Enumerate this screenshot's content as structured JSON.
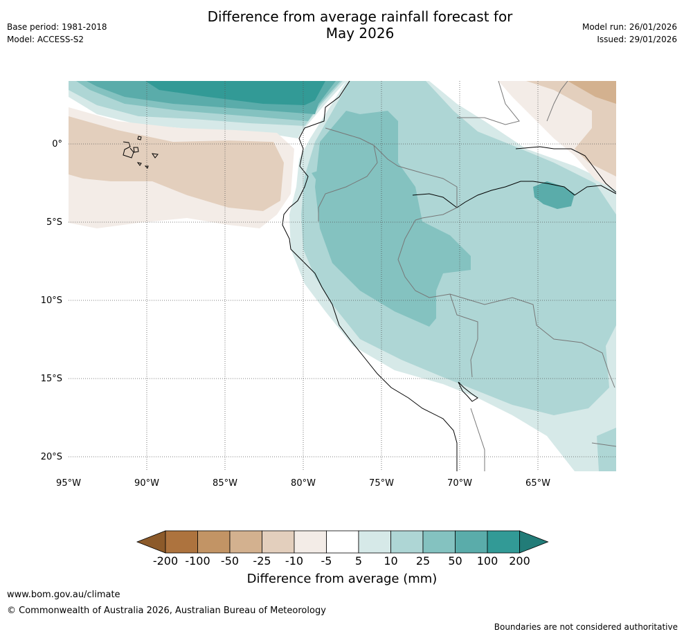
{
  "title_line1": "Difference from average rainfall forecast for",
  "title_line2": "May 2026",
  "base_period": "Base period: 1981-2018",
  "model": "Model: ACCESS-S2",
  "model_run": "Model run: 26/01/2026",
  "issued": "Issued: 29/01/2026",
  "lat_labels": [
    "0°",
    "5°S",
    "10°S",
    "15°S",
    "20°S"
  ],
  "lon_labels": [
    "95°W",
    "90°W",
    "85°W",
    "80°W",
    "75°W",
    "70°W",
    "65°W"
  ],
  "colorbar": {
    "title": "Difference from average (mm)",
    "ticks": [
      "-200",
      "-100",
      "-50",
      "-25",
      "-10",
      "-5",
      "5",
      "10",
      "25",
      "50",
      "100",
      "200"
    ],
    "colors": [
      "#8c5a2a",
      "#ad733e",
      "#c29465",
      "#d3b18f",
      "#e3cfbd",
      "#f3ece7",
      "#ffffff",
      "#d6e9e8",
      "#aed6d5",
      "#84c2c0",
      "#5aacaa",
      "#329a96",
      "#227c78"
    ]
  },
  "footer_url": "www.bom.gov.au/climate",
  "footer_copyright": "© Commonwealth of Australia 2026, Australian Bureau of Meteorology",
  "footer_note": "Boundaries are not considered authoritative"
}
